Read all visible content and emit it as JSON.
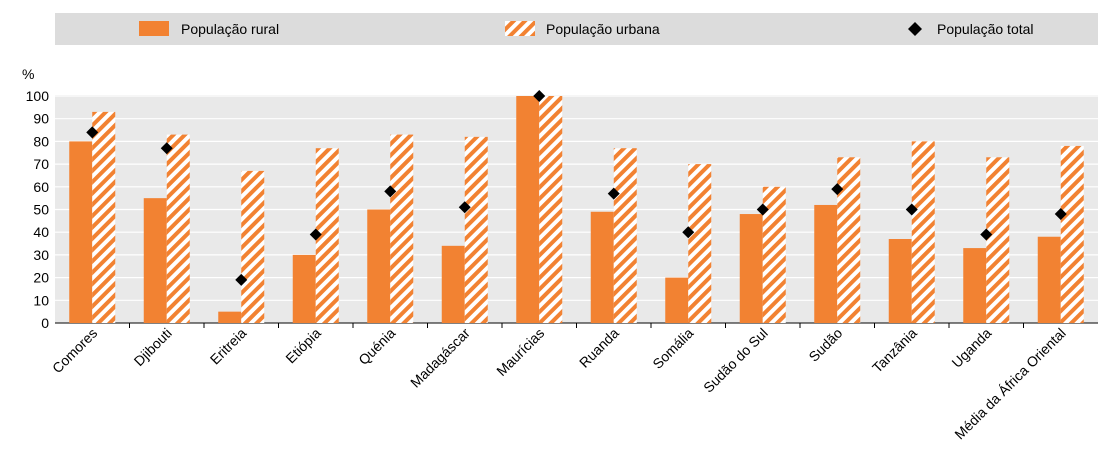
{
  "chart_data": {
    "type": "bar",
    "title": "",
    "ylabel": "%",
    "xlabel": "",
    "ylim": [
      0,
      100
    ],
    "yticks": [
      0,
      10,
      20,
      30,
      40,
      50,
      60,
      70,
      80,
      90,
      100
    ],
    "grid": true,
    "legend_position": "top",
    "categories": [
      "Comores",
      "Djibouti",
      "Eritreia",
      "Etiópia",
      "Quénia",
      "Madagáscar",
      "Maurícias",
      "Ruanda",
      "Somália",
      "Sudão do Sul",
      "Sudão",
      "Tanzânia",
      "Uganda",
      "Média da África Oriental"
    ],
    "series": [
      {
        "name": "População rural",
        "kind": "bar",
        "pattern": "solid",
        "color": "#f28232",
        "values": [
          80,
          55,
          5,
          30,
          50,
          34,
          100,
          49,
          20,
          48,
          52,
          37,
          33,
          38
        ]
      },
      {
        "name": "População urbana",
        "kind": "bar",
        "pattern": "hatched",
        "color": "#f28232",
        "values": [
          93,
          83,
          67,
          77,
          83,
          82,
          100,
          77,
          70,
          60,
          73,
          80,
          73,
          78
        ]
      },
      {
        "name": "População total",
        "kind": "marker",
        "marker": "diamond",
        "color": "#000000",
        "values": [
          84,
          77,
          19,
          39,
          58,
          51,
          100,
          57,
          40,
          50,
          59,
          50,
          39,
          48
        ]
      }
    ]
  }
}
